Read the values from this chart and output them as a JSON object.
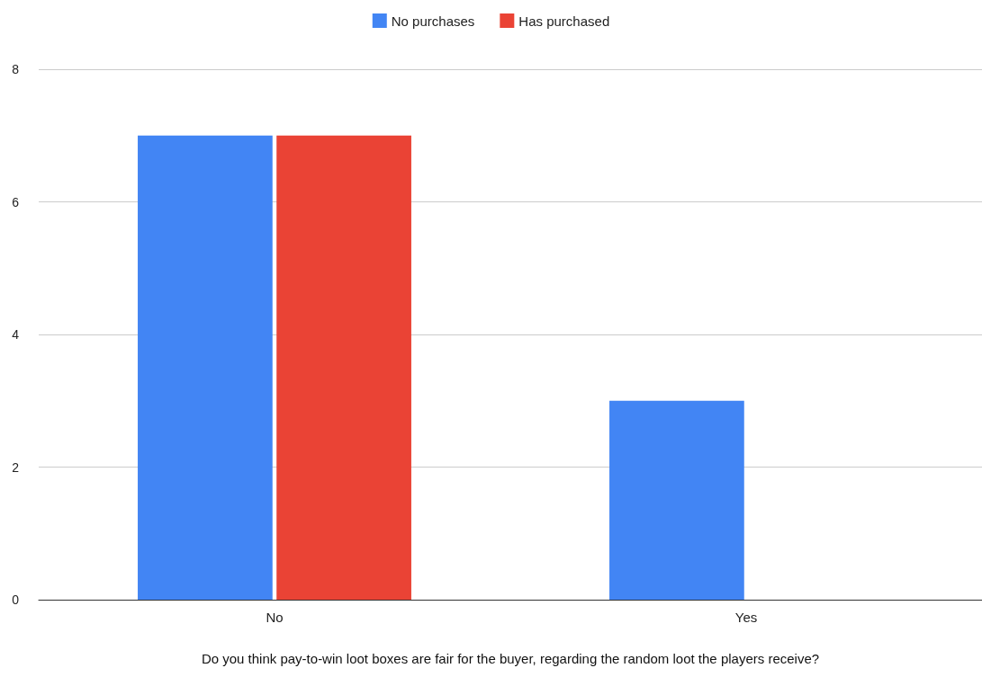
{
  "chart_data": {
    "type": "bar",
    "xlabel": "Do you think pay-to-win loot boxes are fair for the buyer, regarding the random loot the players receive?",
    "categories": [
      "No",
      "Yes"
    ],
    "series": [
      {
        "name": "No purchases",
        "color": "#4285f4",
        "values": [
          7,
          3
        ]
      },
      {
        "name": "Has purchased",
        "color": "#ea4335",
        "values": [
          7,
          0
        ]
      }
    ],
    "ylim": [
      0,
      8
    ],
    "yticks": [
      0,
      2,
      4,
      6,
      8
    ],
    "grid": "y",
    "legend": "top"
  }
}
